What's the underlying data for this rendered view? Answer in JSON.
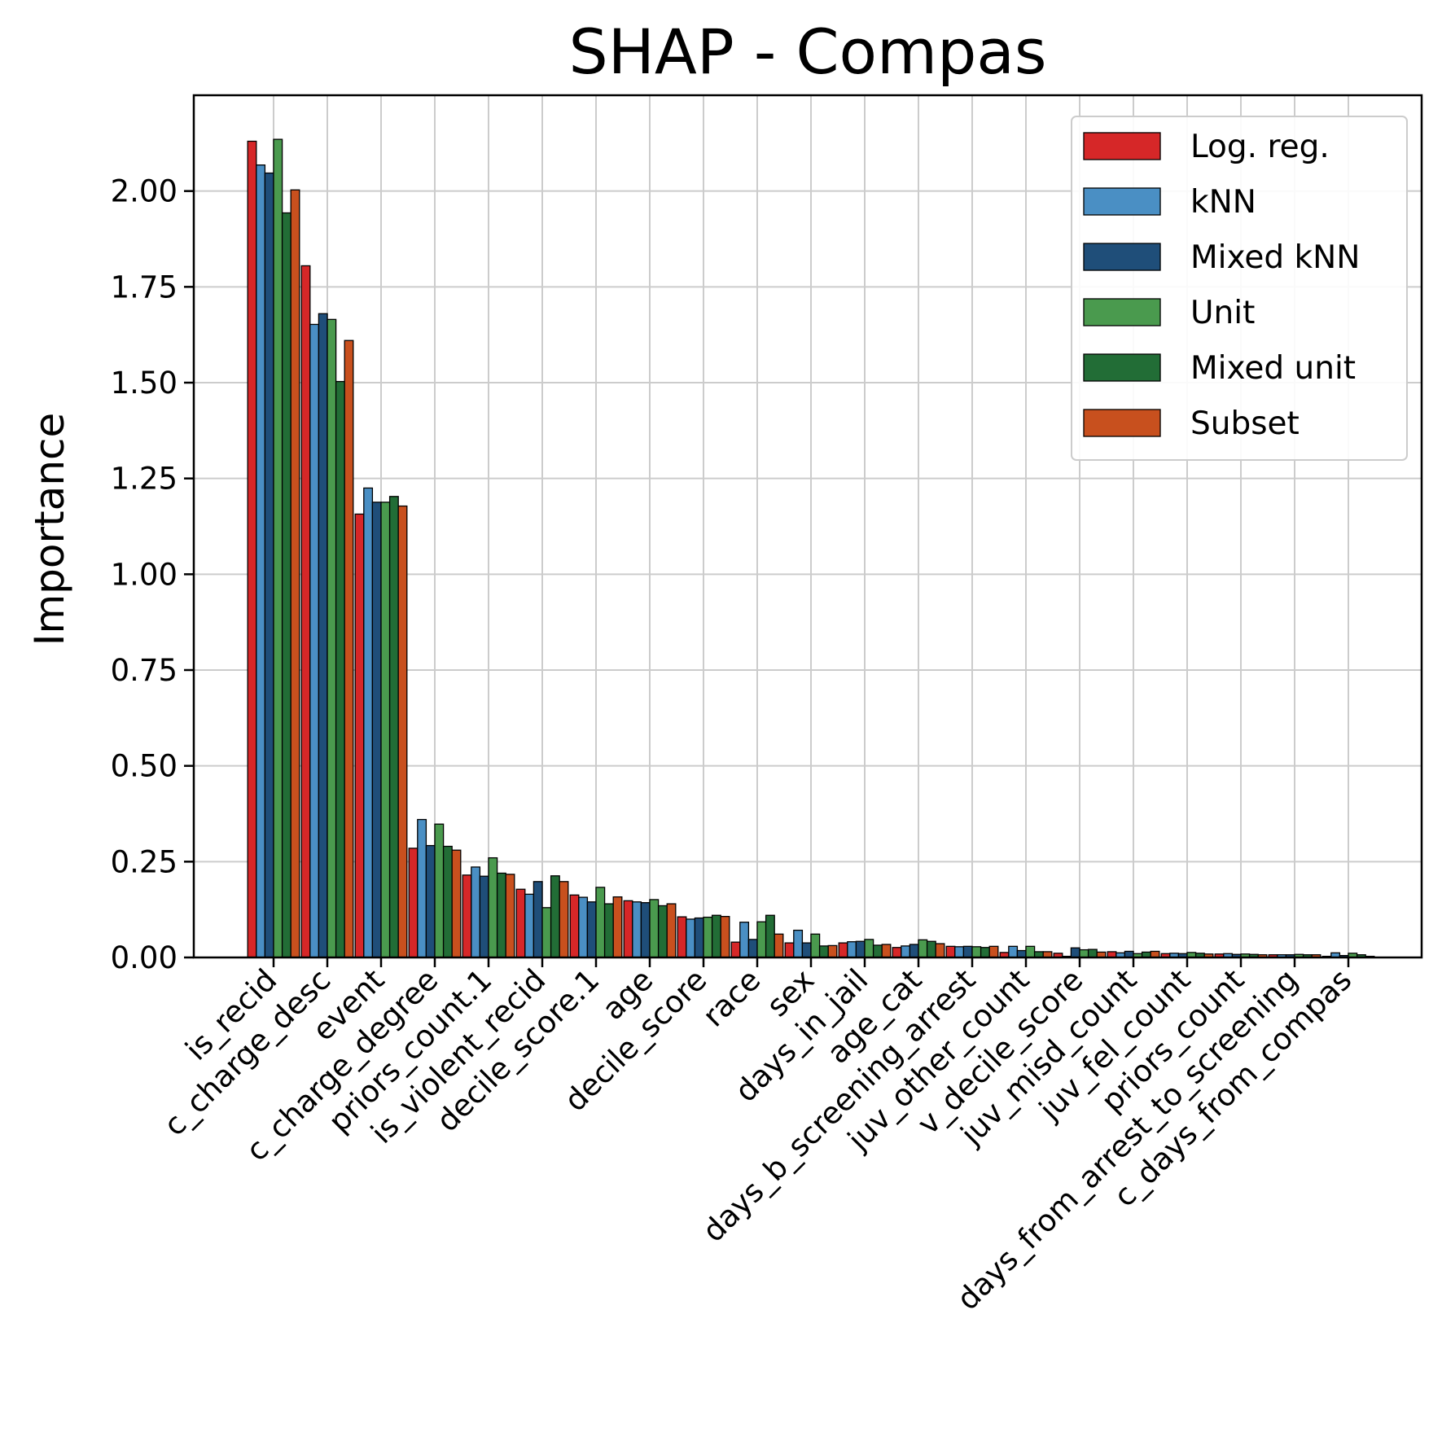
{
  "chart_data": {
    "type": "bar",
    "title": "SHAP - Compas",
    "xlabel": "",
    "ylabel": "Importance",
    "ylim": [
      0,
      2.25
    ],
    "yticks": [
      "0.00",
      "0.25",
      "0.50",
      "0.75",
      "1.00",
      "1.25",
      "1.50",
      "1.75",
      "2.00"
    ],
    "grid": true,
    "legend_position": "top-right",
    "categories": [
      "is_recid",
      "c_charge_desc",
      "event",
      "c_charge_degree",
      "priors_count.1",
      "is_violent_recid",
      "decile_score.1",
      "age",
      "decile_score",
      "race",
      "sex",
      "days_in_jail",
      "age_cat",
      "days_b_screening_arrest",
      "juv_other_count",
      "v_decile_score",
      "juv_misd_count",
      "juv_fel_count",
      "priors_count",
      "days_from_arrest_to_screening",
      "c_days_from_compas"
    ],
    "series": [
      {
        "name": "Log. reg.",
        "color": "#d62728",
        "values": [
          2.13,
          1.805,
          1.157,
          0.285,
          0.215,
          0.178,
          0.163,
          0.148,
          0.106,
          0.04,
          0.038,
          0.038,
          0.026,
          0.029,
          0.013,
          0.011,
          0.015,
          0.01,
          0.009,
          0.007,
          0.003
        ]
      },
      {
        "name": "kNN",
        "color": "#4a8fc4",
        "values": [
          2.068,
          1.652,
          1.225,
          0.36,
          0.236,
          0.165,
          0.157,
          0.145,
          0.1,
          0.092,
          0.071,
          0.041,
          0.03,
          0.028,
          0.029,
          0.003,
          0.012,
          0.011,
          0.01,
          0.007,
          0.012
        ]
      },
      {
        "name": "Mixed kNN",
        "color": "#1f4e79",
        "values": [
          2.047,
          1.68,
          1.188,
          0.292,
          0.212,
          0.198,
          0.145,
          0.143,
          0.103,
          0.047,
          0.038,
          0.042,
          0.034,
          0.029,
          0.018,
          0.025,
          0.016,
          0.01,
          0.008,
          0.007,
          0.005
        ]
      },
      {
        "name": "Unit",
        "color": "#4a9a4e",
        "values": [
          2.135,
          1.665,
          1.188,
          0.348,
          0.26,
          0.13,
          0.183,
          0.151,
          0.105,
          0.093,
          0.061,
          0.047,
          0.046,
          0.028,
          0.029,
          0.02,
          0.01,
          0.013,
          0.009,
          0.008,
          0.011
        ]
      },
      {
        "name": "Mixed unit",
        "color": "#226d36",
        "values": [
          1.943,
          1.503,
          1.203,
          0.29,
          0.22,
          0.213,
          0.14,
          0.135,
          0.11,
          0.11,
          0.03,
          0.032,
          0.042,
          0.026,
          0.015,
          0.021,
          0.014,
          0.011,
          0.008,
          0.007,
          0.007
        ]
      },
      {
        "name": "Subset",
        "color": "#c8501e",
        "values": [
          2.003,
          1.61,
          1.178,
          0.28,
          0.217,
          0.198,
          0.158,
          0.14,
          0.107,
          0.061,
          0.031,
          0.034,
          0.036,
          0.029,
          0.015,
          0.014,
          0.016,
          0.009,
          0.007,
          0.007,
          0.003
        ]
      }
    ]
  }
}
